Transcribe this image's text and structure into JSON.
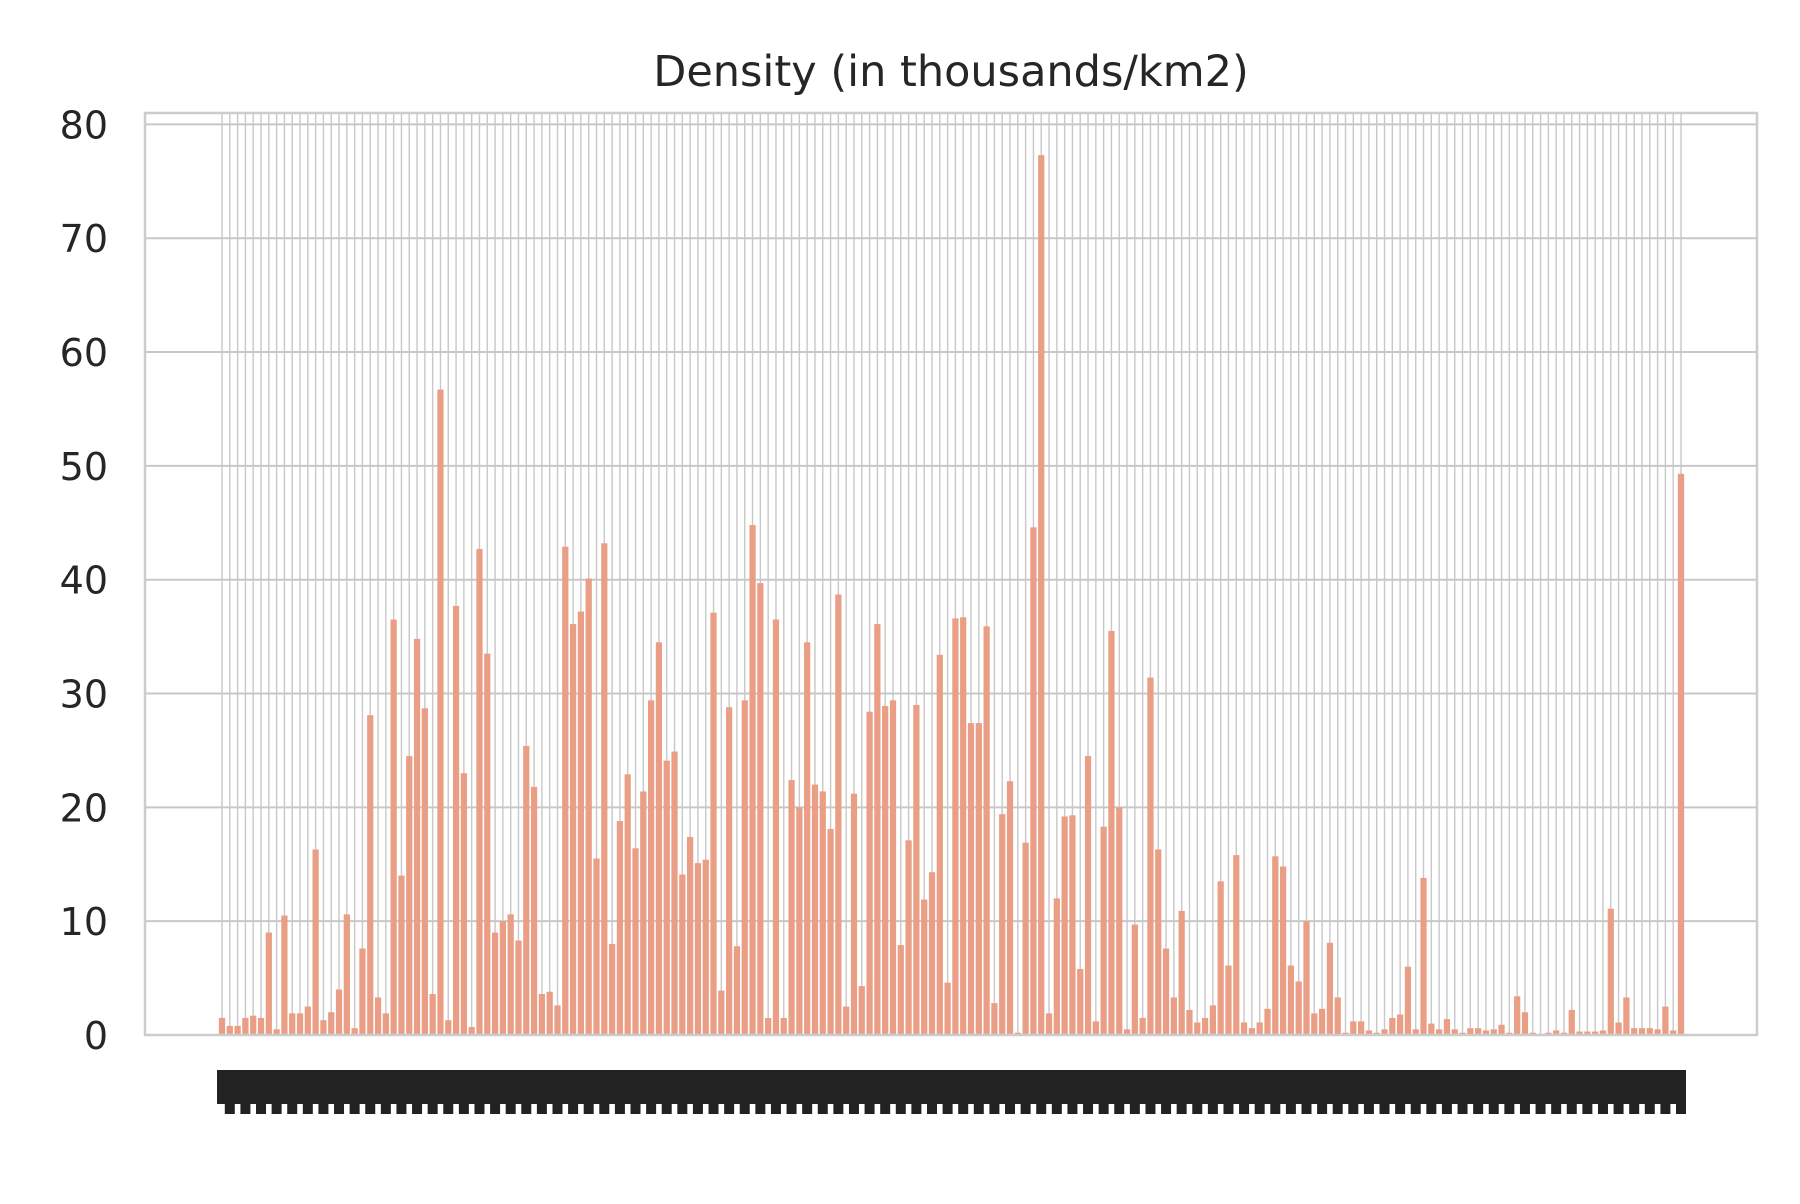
{
  "chart_data": {
    "type": "bar",
    "title": "Density (in thousands/km2)",
    "xlabel": "",
    "ylabel": "",
    "ylim": [
      0,
      81
    ],
    "yticks": [
      0,
      10,
      20,
      30,
      40,
      50,
      60,
      70,
      80
    ],
    "grid": true,
    "legend": "none",
    "bar_color": "#ea9e86",
    "gridline_color": "#c8c8c8",
    "values": [
      1.5,
      0.8,
      0.8,
      1.5,
      1.7,
      1.5,
      9,
      0.5,
      10.5,
      1.9,
      1.9,
      2.5,
      16.3,
      1.3,
      2,
      4,
      10.6,
      0.6,
      7.6,
      28.1,
      3.3,
      1.9,
      36.5,
      14,
      24.5,
      34.8,
      28.7,
      3.6,
      56.7,
      1.3,
      37.7,
      23,
      0.7,
      42.7,
      33.5,
      9,
      10,
      10.6,
      8.3,
      25.4,
      21.8,
      3.6,
      3.8,
      2.6,
      42.9,
      36.1,
      37.2,
      40.1,
      15.5,
      43.2,
      8,
      18.8,
      22.9,
      16.4,
      21.4,
      29.4,
      34.5,
      24.1,
      24.9,
      14.1,
      17.4,
      15.1,
      15.4,
      37.1,
      3.9,
      28.8,
      7.8,
      29.4,
      44.8,
      39.7,
      1.5,
      36.5,
      1.5,
      22.4,
      20,
      34.5,
      22,
      21.4,
      18.1,
      38.7,
      2.5,
      21.2,
      4.3,
      28.4,
      36.1,
      28.9,
      29.4,
      7.9,
      17.1,
      29,
      11.9,
      14.3,
      33.4,
      4.6,
      36.6,
      36.7,
      27.4,
      27.4,
      35.9,
      2.8,
      19.4,
      22.3,
      0.2,
      16.9,
      44.6,
      77.3,
      1.9,
      12,
      19.2,
      19.3,
      5.8,
      24.5,
      1.2,
      18.3,
      35.5,
      20,
      0.5,
      9.7,
      1.5,
      31.4,
      16.3,
      7.6,
      3.3,
      10.9,
      2.2,
      1.1,
      1.5,
      2.6,
      13.5,
      6.1,
      15.8,
      1.1,
      0.6,
      1.1,
      2.3,
      15.7,
      14.8,
      6.1,
      4.7,
      10,
      1.9,
      2.3,
      8.1,
      3.3,
      0.2,
      1.2,
      1.2,
      0.4,
      0.2,
      0.5,
      1.5,
      1.8,
      6,
      0.5,
      13.8,
      1,
      0.5,
      1.4,
      0.5,
      0.2,
      0.6,
      0.6,
      0.4,
      0.5,
      0.9,
      0.2,
      3.4,
      2,
      0.2,
      0.1,
      0.2,
      0.4,
      0.2,
      2.2,
      0.3,
      0.3,
      0.3,
      0.4,
      11.1,
      1.1,
      3.3,
      0.6,
      0.6,
      0.6,
      0.5,
      2.5,
      0.4,
      49.3
    ]
  }
}
